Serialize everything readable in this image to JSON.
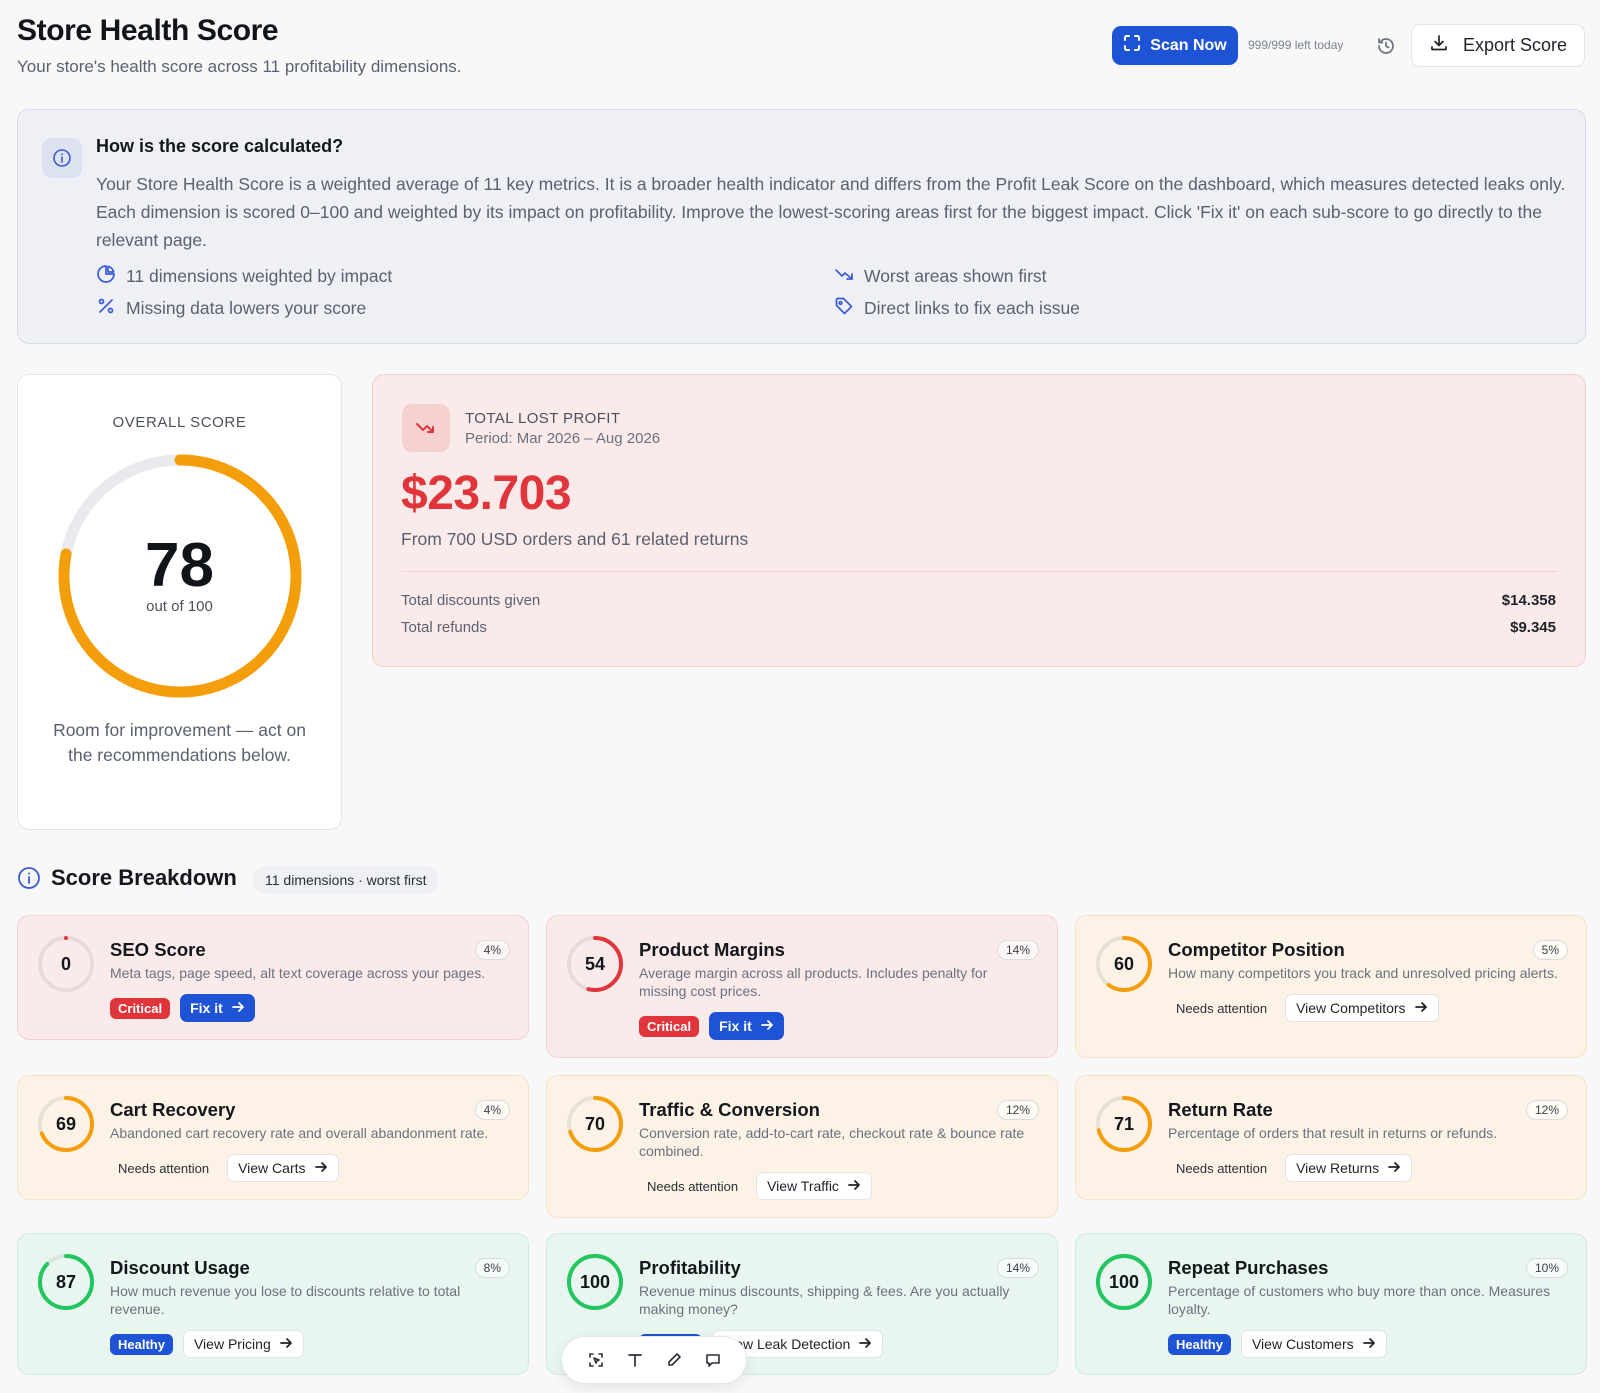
{
  "header": {
    "title": "Store Health Score",
    "subtitle": "Your store's health score across 11 profitability dimensions.",
    "scan_label": "Scan Now",
    "scans_left": "999/999 left today",
    "export_label": "Export Score"
  },
  "info": {
    "heading": "How is the score calculated?",
    "body": "Your Store Health Score is a weighted average of 11 key metrics. It is a broader health indicator and differs from the Profit Leak Score on the dashboard, which measures detected leaks only. Each dimension is scored 0–100 and weighted by its impact on profitability. Improve the lowest-scoring areas first for the biggest impact. Click 'Fix it' on each sub-score to go directly to the relevant page.",
    "features": [
      {
        "icon": "pie-chart-icon",
        "label": "11 dimensions weighted by impact"
      },
      {
        "icon": "trending-down-icon",
        "label": "Worst areas shown first"
      },
      {
        "icon": "percent-icon",
        "label": "Missing data lowers your score"
      },
      {
        "icon": "tag-icon",
        "label": "Direct links to fix each issue"
      }
    ]
  },
  "overall": {
    "label": "OVERALL SCORE",
    "score": "78",
    "score_value": 78,
    "out_of": "out of 100",
    "note": "Room for improvement — act on the recommendations below.",
    "color": "#f59e0b"
  },
  "lost_profit": {
    "label": "TOTAL LOST PROFIT",
    "period": "Period: Mar 2026 – Aug 2026",
    "amount": "$23.703",
    "from": "From 700 USD orders and 61 related returns",
    "rows": [
      {
        "label": "Total discounts given",
        "value": "$14.358"
      },
      {
        "label": "Total refunds",
        "value": "$9.345"
      }
    ]
  },
  "breakdown": {
    "title": "Score Breakdown",
    "badge": "11 dimensions · worst first",
    "cards": [
      {
        "title": "SEO Score",
        "weight": "4%",
        "score": "0",
        "value": 0,
        "tone": "red",
        "desc": "Meta tags, page speed, alt text coverage across your pages.",
        "status": "Critical",
        "action": "Fix it",
        "primary": true
      },
      {
        "title": "Product Margins",
        "weight": "14%",
        "score": "54",
        "value": 54,
        "tone": "red",
        "desc": "Average margin across all products. Includes penalty for missing cost prices.",
        "status": "Critical",
        "action": "Fix it",
        "primary": true
      },
      {
        "title": "Competitor Position",
        "weight": "5%",
        "score": "60",
        "value": 60,
        "tone": "amber",
        "desc": "How many competitors you track and unresolved pricing alerts.",
        "status": "Needs attention",
        "action": "View Competitors",
        "primary": false
      },
      {
        "title": "Cart Recovery",
        "weight": "4%",
        "score": "69",
        "value": 69,
        "tone": "amber",
        "desc": "Abandoned cart recovery rate and overall abandonment rate.",
        "status": "Needs attention",
        "action": "View Carts",
        "primary": false
      },
      {
        "title": "Traffic & Conversion",
        "weight": "12%",
        "score": "70",
        "value": 70,
        "tone": "amber",
        "desc": "Conversion rate, add-to-cart rate, checkout rate & bounce rate combined.",
        "status": "Needs attention",
        "action": "View Traffic",
        "primary": false
      },
      {
        "title": "Return Rate",
        "weight": "12%",
        "score": "71",
        "value": 71,
        "tone": "amber",
        "desc": "Percentage of orders that result in returns or refunds.",
        "status": "Needs attention",
        "action": "View Returns",
        "primary": false
      },
      {
        "title": "Discount Usage",
        "weight": "8%",
        "score": "87",
        "value": 87,
        "tone": "green",
        "desc": "How much revenue you lose to discounts relative to total revenue.",
        "status": "Healthy",
        "action": "View Pricing",
        "primary": false
      },
      {
        "title": "Profitability",
        "weight": "14%",
        "score": "100",
        "value": 100,
        "tone": "green",
        "desc": "Revenue minus discounts, shipping & fees. Are you actually making money?",
        "status": "Healthy",
        "action": "View Leak Detection",
        "primary": false
      },
      {
        "title": "Repeat Purchases",
        "weight": "10%",
        "score": "100",
        "value": 100,
        "tone": "green",
        "desc": "Percentage of customers who buy more than once. Measures loyalty.",
        "status": "Healthy",
        "action": "View Customers",
        "primary": false
      }
    ]
  },
  "colors": {
    "accent": "#1f53d6",
    "critical": "#e0353b",
    "warning": "#f59e0b",
    "healthy": "#22c55e"
  }
}
